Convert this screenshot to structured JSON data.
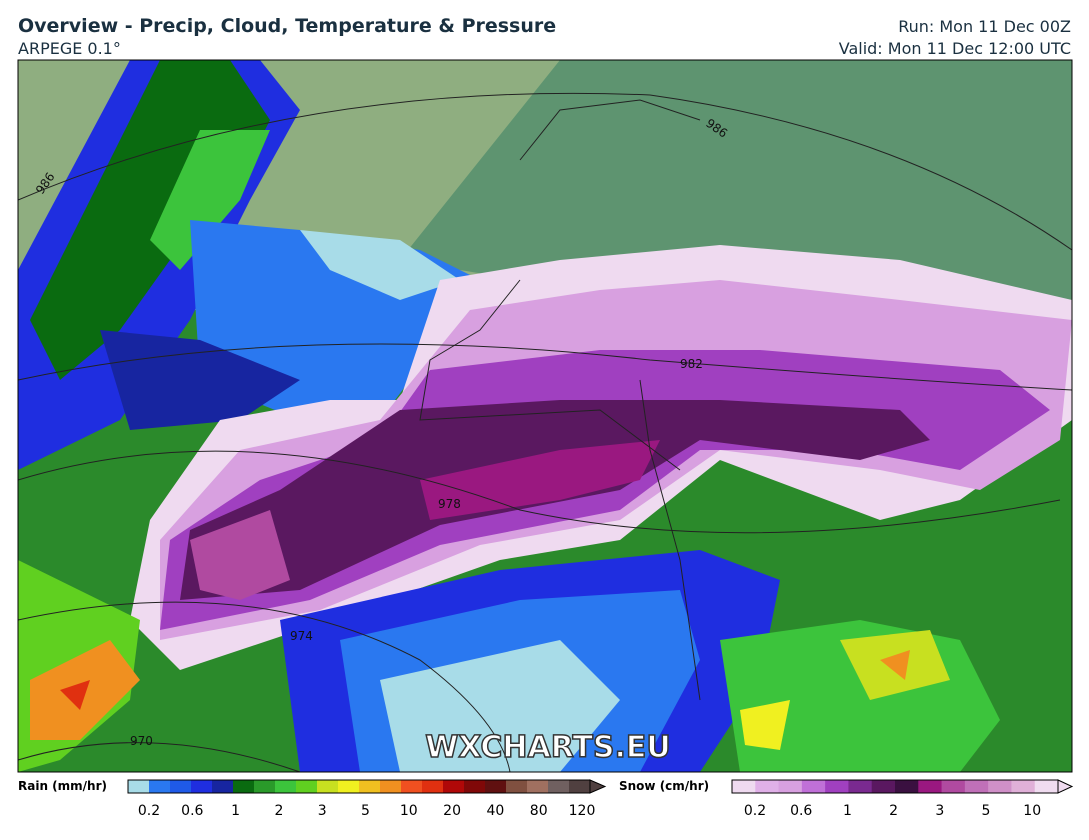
{
  "header": {
    "title": "Overview - Precip, Cloud, Temperature & Pressure",
    "model": "ARPEGE 0.1°",
    "run": "Run: Mon 11 Dec 00Z",
    "valid": "Valid: Mon 11 Dec 12:00 UTC"
  },
  "map": {
    "watermark": "WXCHARTS.EU",
    "isobar_labels": [
      "986",
      "986",
      "982",
      "978",
      "974",
      "970"
    ]
  },
  "legend": {
    "rain": {
      "title": "Rain (mm/hr)",
      "ticks": [
        "0.2",
        "0.6",
        "1",
        "2",
        "3",
        "5",
        "10",
        "20",
        "40",
        "80",
        "120"
      ]
    },
    "snow": {
      "title": "Snow (cm/hr)",
      "ticks": [
        "0.2",
        "0.6",
        "1",
        "2",
        "3",
        "5",
        "10"
      ]
    }
  }
}
